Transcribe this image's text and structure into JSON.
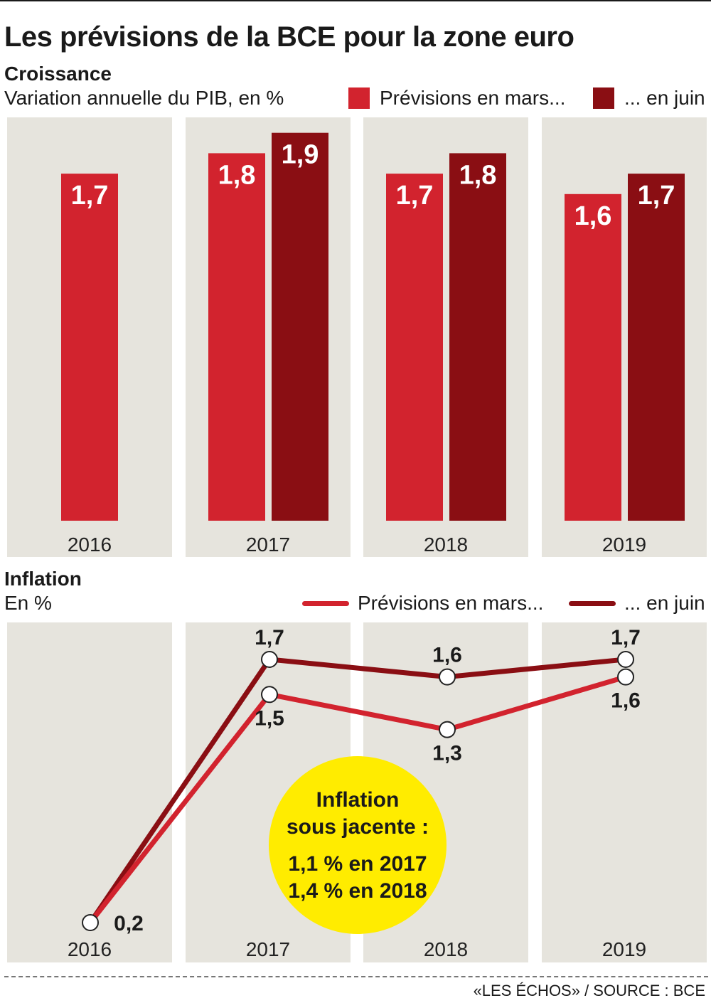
{
  "title": "Les prévisions de la BCE pour la zone euro",
  "colors": {
    "mars": "#d2232e",
    "juin": "#8a0e13",
    "panel": "#e6e4dd",
    "callout": "#ffec00"
  },
  "chart_data": [
    {
      "type": "bar",
      "title": "Croissance",
      "subtitle": "Variation annuelle du PIB, en %",
      "categories": [
        "2016",
        "2017",
        "2018",
        "2019"
      ],
      "series": [
        {
          "name": "Prévisions en mars...",
          "values": [
            1.7,
            1.8,
            1.7,
            1.6
          ],
          "labels": [
            "1,7",
            "1,8",
            "1,7",
            "1,6"
          ]
        },
        {
          "name": "... en juin",
          "values": [
            null,
            1.9,
            1.8,
            1.7
          ],
          "labels": [
            null,
            "1,9",
            "1,8",
            "1,7"
          ]
        }
      ],
      "legend_position": "top-right"
    },
    {
      "type": "line",
      "title": "Inflation",
      "subtitle": "En %",
      "categories": [
        "2016",
        "2017",
        "2018",
        "2019"
      ],
      "series": [
        {
          "name": "Prévisions en mars...",
          "values": [
            0.2,
            1.5,
            1.3,
            1.6
          ],
          "labels": [
            "0,2",
            "1,5",
            "1,3",
            "1,6"
          ]
        },
        {
          "name": "... en juin",
          "values": [
            0.2,
            1.7,
            1.6,
            1.7
          ],
          "labels": [
            null,
            "1,7",
            "1,6",
            "1,7"
          ]
        }
      ],
      "legend_position": "top-right",
      "annotation": {
        "heading": [
          "Inflation",
          "sous jacente :"
        ],
        "lines": [
          "1,1 % en 2017",
          "1,4 % en 2018"
        ]
      }
    }
  ],
  "source": "«LES ÉCHOS» / SOURCE : BCE"
}
